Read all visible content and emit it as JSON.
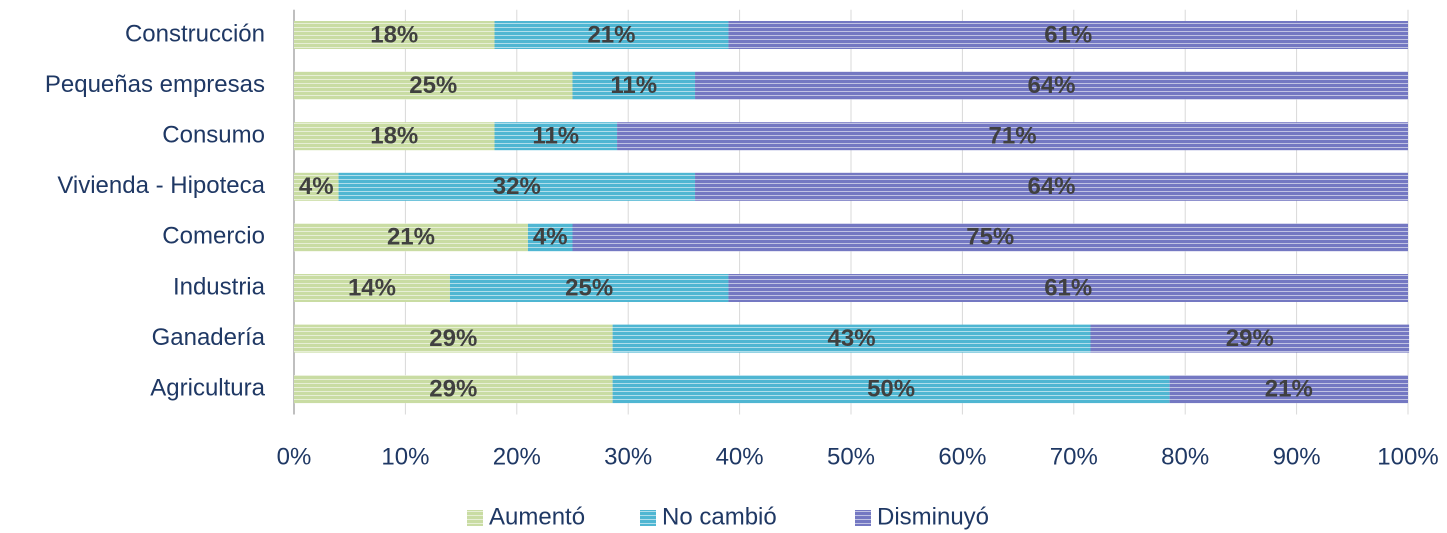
{
  "chart_data": {
    "type": "stacked_barh",
    "categories": [
      "Construcción",
      "Pequeñas empresas",
      "Consumo",
      "Vivienda - Hipoteca",
      "Comercio",
      "Industria",
      "Ganadería",
      "Agricultura"
    ],
    "series": [
      {
        "name": "Aumentó",
        "color": "#c9dca3",
        "values": [
          18,
          25,
          18,
          4,
          21,
          14,
          28.6,
          28.6
        ],
        "value_labels": [
          "18%",
          "25%",
          "18%",
          "4%",
          "21%",
          "14%",
          "29%",
          "29%"
        ]
      },
      {
        "name": "No cambió",
        "color": "#4fb6d2",
        "values": [
          21,
          11,
          11,
          32,
          4,
          25,
          42.9,
          50
        ],
        "value_labels": [
          "21%",
          "11%",
          "11%",
          "32%",
          "4%",
          "25%",
          "43%",
          "50%"
        ]
      },
      {
        "name": "Disminuyó",
        "color": "#7478c2",
        "values": [
          61,
          64,
          71,
          64,
          75,
          61,
          28.6,
          21.4
        ],
        "value_labels": [
          "61%",
          "64%",
          "71%",
          "64%",
          "75%",
          "61%",
          "29%",
          "21%"
        ]
      }
    ],
    "xlim": [
      0,
      100
    ],
    "xticks": [
      {
        "value": 0,
        "label": "0%"
      },
      {
        "value": 10,
        "label": "10%"
      },
      {
        "value": 20,
        "label": "20%"
      },
      {
        "value": 30,
        "label": "30%"
      },
      {
        "value": 40,
        "label": "40%"
      },
      {
        "value": 50,
        "label": "50%"
      },
      {
        "value": 60,
        "label": "60%"
      },
      {
        "value": 70,
        "label": "70%"
      },
      {
        "value": 80,
        "label": "80%"
      },
      {
        "value": 90,
        "label": "90%"
      },
      {
        "value": 100,
        "label": "100%"
      }
    ],
    "grid": true,
    "legend": "bottom"
  }
}
